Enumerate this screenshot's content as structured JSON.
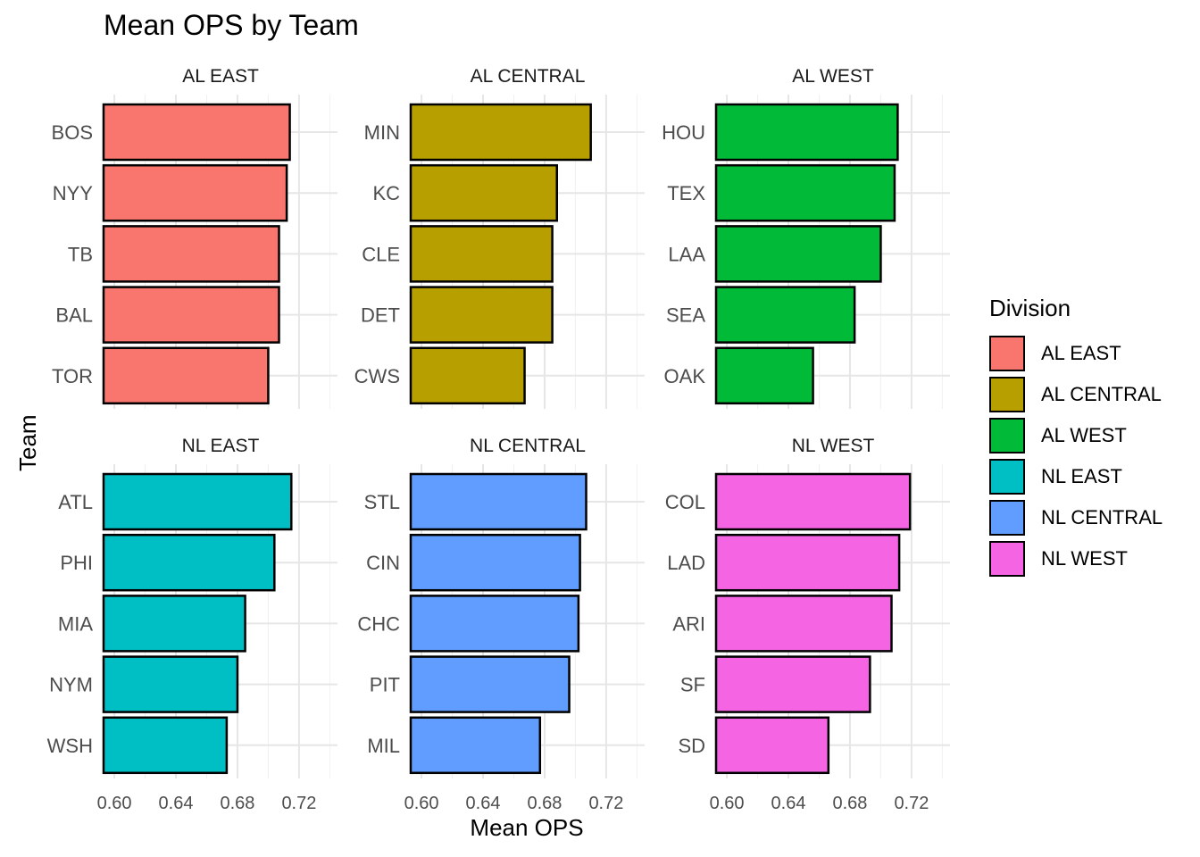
{
  "chart_data": {
    "type": "bar",
    "orientation": "horizontal",
    "title": "Mean OPS by Team",
    "xlabel": "Mean OPS",
    "ylabel": "Team",
    "xlim": [
      0.593,
      0.745
    ],
    "xticks": [
      "0.60",
      "0.64",
      "0.68",
      "0.72"
    ],
    "grid": true,
    "legend_title": "Division",
    "legend_position": "right",
    "panels": [
      {
        "name": "AL EAST",
        "color": "#F8766D",
        "categories": [
          "BOS",
          "NYY",
          "TB",
          "BAL",
          "TOR"
        ],
        "values": [
          0.714,
          0.712,
          0.707,
          0.707,
          0.7
        ]
      },
      {
        "name": "AL CENTRAL",
        "color": "#B79F00",
        "categories": [
          "MIN",
          "KC",
          "CLE",
          "DET",
          "CWS"
        ],
        "values": [
          0.71,
          0.688,
          0.685,
          0.685,
          0.667
        ]
      },
      {
        "name": "AL WEST",
        "color": "#00BA38",
        "categories": [
          "HOU",
          "TEX",
          "LAA",
          "SEA",
          "OAK"
        ],
        "values": [
          0.711,
          0.709,
          0.7,
          0.683,
          0.656
        ]
      },
      {
        "name": "NL EAST",
        "color": "#00BFC4",
        "categories": [
          "ATL",
          "PHI",
          "MIA",
          "NYM",
          "WSH"
        ],
        "values": [
          0.715,
          0.704,
          0.685,
          0.68,
          0.673
        ]
      },
      {
        "name": "NL CENTRAL",
        "color": "#619CFF",
        "categories": [
          "STL",
          "CIN",
          "CHC",
          "PIT",
          "MIL"
        ],
        "values": [
          0.707,
          0.703,
          0.702,
          0.696,
          0.677
        ]
      },
      {
        "name": "NL WEST",
        "color": "#F564E3",
        "categories": [
          "COL",
          "LAD",
          "ARI",
          "SF",
          "SD"
        ],
        "values": [
          0.719,
          0.712,
          0.707,
          0.693,
          0.666
        ]
      }
    ]
  }
}
